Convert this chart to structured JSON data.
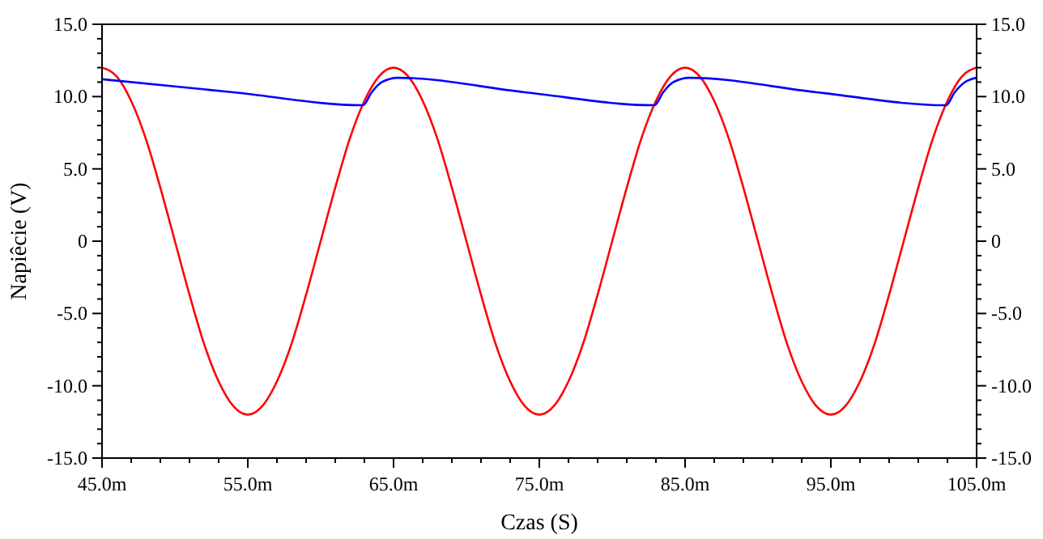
{
  "chart_data": {
    "type": "line",
    "xlabel": "Czas (S)",
    "ylabel": "Napiêcie (V)",
    "xlim": [
      45,
      105
    ],
    "xticks": [
      {
        "value": 45,
        "label": "45.0m"
      },
      {
        "value": 47,
        "label": null
      },
      {
        "value": 49,
        "label": null
      },
      {
        "value": 51,
        "label": null
      },
      {
        "value": 53,
        "label": null
      },
      {
        "value": 55,
        "label": "55.0m"
      },
      {
        "value": 57,
        "label": null
      },
      {
        "value": 59,
        "label": null
      },
      {
        "value": 61,
        "label": null
      },
      {
        "value": 63,
        "label": null
      },
      {
        "value": 65,
        "label": "65.0m"
      },
      {
        "value": 67,
        "label": null
      },
      {
        "value": 69,
        "label": null
      },
      {
        "value": 71,
        "label": null
      },
      {
        "value": 73,
        "label": null
      },
      {
        "value": 75,
        "label": "75.0m"
      },
      {
        "value": 77,
        "label": null
      },
      {
        "value": 79,
        "label": null
      },
      {
        "value": 81,
        "label": null
      },
      {
        "value": 83,
        "label": null
      },
      {
        "value": 85,
        "label": "85.0m"
      },
      {
        "value": 87,
        "label": null
      },
      {
        "value": 89,
        "label": null
      },
      {
        "value": 91,
        "label": null
      },
      {
        "value": 93,
        "label": null
      },
      {
        "value": 95,
        "label": "95.0m"
      },
      {
        "value": 97,
        "label": null
      },
      {
        "value": 99,
        "label": null
      },
      {
        "value": 101,
        "label": null
      },
      {
        "value": 103,
        "label": null
      },
      {
        "value": 105,
        "label": "105.0m"
      }
    ],
    "ylim": [
      -15,
      15
    ],
    "yticks": [
      {
        "value": -15,
        "label": "-15.0"
      },
      {
        "value": -14,
        "label": null
      },
      {
        "value": -13,
        "label": null
      },
      {
        "value": -12,
        "label": null
      },
      {
        "value": -11,
        "label": null
      },
      {
        "value": -10,
        "label": "-10.0"
      },
      {
        "value": -9,
        "label": null
      },
      {
        "value": -8,
        "label": null
      },
      {
        "value": -7,
        "label": null
      },
      {
        "value": -6,
        "label": null
      },
      {
        "value": -5,
        "label": "-5.0"
      },
      {
        "value": -4,
        "label": null
      },
      {
        "value": -3,
        "label": null
      },
      {
        "value": -2,
        "label": null
      },
      {
        "value": -1,
        "label": null
      },
      0,
      {
        "value": 1,
        "label": null
      },
      {
        "value": 2,
        "label": null
      },
      {
        "value": 3,
        "label": null
      },
      {
        "value": 4,
        "label": null
      },
      {
        "value": 5,
        "label": "5.0"
      },
      {
        "value": 6,
        "label": null
      },
      {
        "value": 7,
        "label": null
      },
      {
        "value": 8,
        "label": null
      },
      {
        "value": 9,
        "label": null
      },
      {
        "value": 10,
        "label": "10.0"
      },
      {
        "value": 11,
        "label": null
      },
      {
        "value": 12,
        "label": null
      },
      {
        "value": 13,
        "label": null
      },
      {
        "value": 14,
        "label": null
      },
      {
        "value": 15,
        "label": "15.0"
      }
    ],
    "y2lim": [
      -15,
      15
    ],
    "y2ticks": [
      {
        "value": -15,
        "label": "-15.0"
      },
      {
        "value": -14,
        "label": null
      },
      {
        "value": -13,
        "label": null
      },
      {
        "value": -12,
        "label": null
      },
      {
        "value": -11,
        "label": null
      },
      {
        "value": -10,
        "label": "-10.0"
      },
      {
        "value": -9,
        "label": null
      },
      {
        "value": -8,
        "label": null
      },
      {
        "value": -7,
        "label": null
      },
      {
        "value": -6,
        "label": null
      },
      {
        "value": -5,
        "label": "-5.0"
      },
      {
        "value": -4,
        "label": null
      },
      {
        "value": -3,
        "label": null
      },
      {
        "value": -2,
        "label": null
      },
      {
        "value": -1,
        "label": null
      },
      0,
      {
        "value": 1,
        "label": null
      },
      {
        "value": 2,
        "label": null
      },
      {
        "value": 3,
        "label": null
      },
      {
        "value": 4,
        "label": null
      },
      {
        "value": 5,
        "label": "5.0"
      },
      {
        "value": 6,
        "label": null
      },
      {
        "value": 7,
        "label": null
      },
      {
        "value": 8,
        "label": null
      },
      {
        "value": 9,
        "label": null
      },
      {
        "value": 10,
        "label": "10.0"
      },
      {
        "value": 11,
        "label": null
      },
      {
        "value": 12,
        "label": null
      },
      {
        "value": 13,
        "label": null
      },
      {
        "value": 14,
        "label": null
      },
      {
        "value": 15,
        "label": "15.0"
      }
    ],
    "grid": false,
    "marker": "none",
    "line_style": "solid",
    "series": [
      {
        "color": "#ff0000",
        "x": [
          45,
          46,
          47,
          48,
          49,
          50,
          51,
          52,
          53,
          54,
          55,
          56,
          57,
          58,
          59,
          60,
          61,
          62,
          63,
          64,
          65,
          66,
          67,
          68,
          69,
          70,
          71,
          72,
          73,
          74,
          75,
          76,
          77,
          78,
          79,
          80,
          81,
          82,
          83,
          84,
          85,
          86,
          87,
          88,
          89,
          90,
          91,
          92,
          93,
          94,
          95,
          96,
          97,
          98,
          99,
          100,
          101,
          102,
          103,
          104,
          105
        ],
        "values": [
          12,
          11.4,
          9.7,
          7.1,
          3.7,
          0,
          -3.7,
          -7.1,
          -9.7,
          -11.4,
          -12,
          -11.4,
          -9.7,
          -7.1,
          -3.7,
          0,
          3.7,
          7.1,
          9.7,
          11.4,
          12,
          11.4,
          9.7,
          7.1,
          3.7,
          0,
          -3.7,
          -7.1,
          -9.7,
          -11.4,
          -12,
          -11.4,
          -9.7,
          -7.1,
          -3.7,
          0,
          3.7,
          7.1,
          9.7,
          11.4,
          12,
          11.4,
          9.7,
          7.1,
          3.7,
          0,
          -3.7,
          -7.1,
          -9.7,
          -11.4,
          -12,
          -11.4,
          -9.7,
          -7.1,
          -3.7,
          0,
          3.7,
          7.1,
          9.7,
          11.4,
          12
        ]
      },
      {
        "color": "#0000ff",
        "x": [
          45,
          54,
          62.9,
          63.5,
          64.2,
          65.3,
          74,
          82.9,
          83.5,
          84.2,
          85.3,
          94,
          102.9,
          103.5,
          104.2,
          105
        ],
        "values": [
          11.2,
          10.3,
          9.4,
          10.3,
          11.0,
          11.3,
          10.3,
          9.4,
          10.3,
          11.0,
          11.3,
          10.3,
          9.4,
          10.3,
          11.0,
          11.3
        ]
      }
    ]
  }
}
